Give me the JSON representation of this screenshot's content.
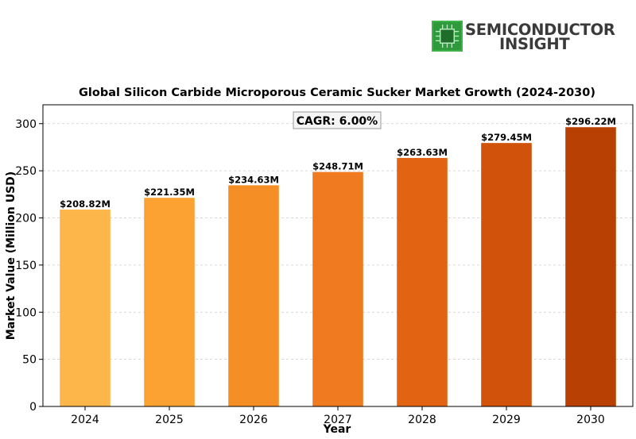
{
  "brand": {
    "line1": "SEMICONDUCTOR",
    "line2": "INSIGHT",
    "icon": "chip-icon",
    "icon_color": "#3db34a"
  },
  "chart_data": {
    "type": "bar",
    "title": "Global Silicon Carbide Microporous Ceramic Sucker Market Growth (2024-2030)",
    "xlabel": "Year",
    "ylabel": "Market Value (Million USD)",
    "categories": [
      "2024",
      "2025",
      "2026",
      "2027",
      "2028",
      "2029",
      "2030"
    ],
    "values": [
      208.82,
      221.35,
      234.63,
      248.71,
      263.63,
      279.45,
      296.22
    ],
    "value_labels": [
      "$208.82M",
      "$221.35M",
      "$234.63M",
      "$248.71M",
      "$263.63M",
      "$279.45M",
      "$296.22M"
    ],
    "colors": [
      "#fdb64a",
      "#fba233",
      "#f68e26",
      "#ef7a1f",
      "#e26413",
      "#d1520a",
      "#b84003"
    ],
    "ylim": [
      0,
      320
    ],
    "yticks": [
      0,
      50,
      100,
      150,
      200,
      250,
      300
    ],
    "grid": true,
    "annotation": "CAGR: 6.00%"
  }
}
